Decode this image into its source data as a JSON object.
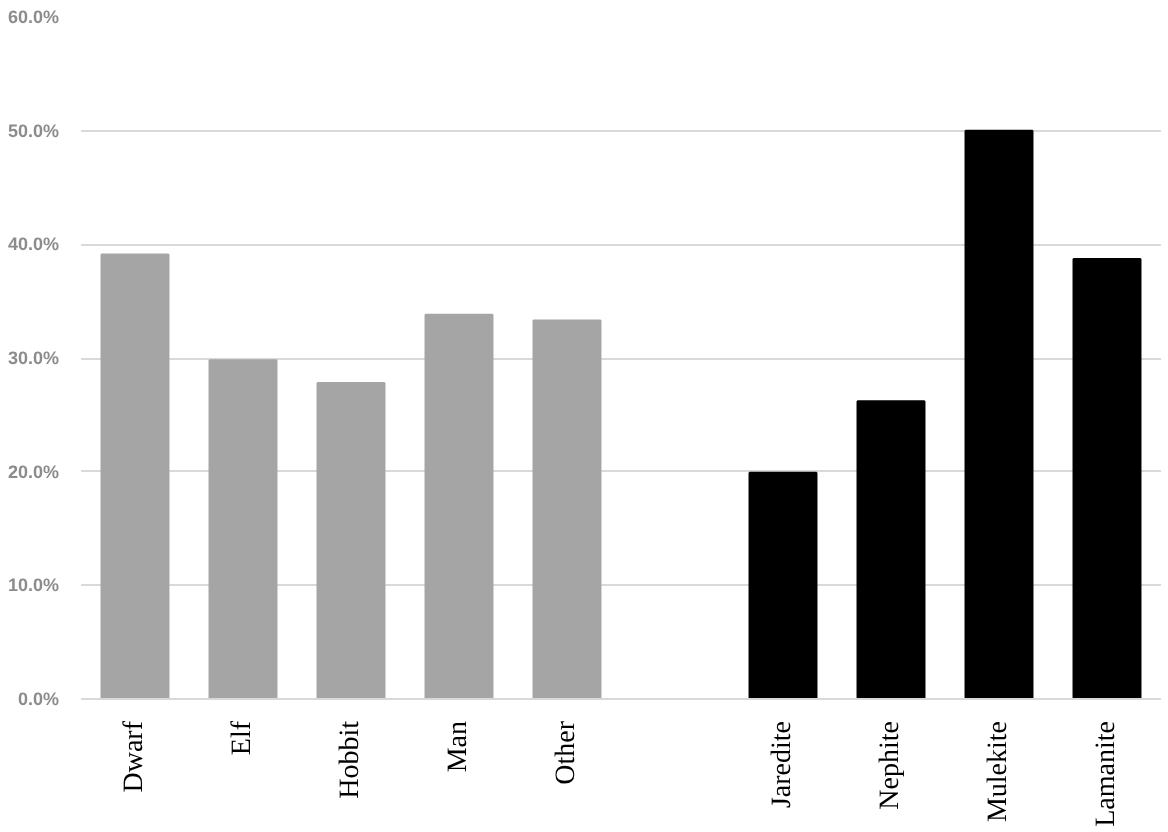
{
  "chart_data": {
    "type": "bar",
    "categories": [
      "Dwarf",
      "Elf",
      "Hobbit",
      "Man",
      "Other",
      null,
      "Jaredite",
      "Nephite",
      "Mulekite",
      "Lamanite"
    ],
    "values": [
      39.1,
      29.8,
      27.8,
      33.8,
      33.3,
      null,
      19.9,
      26.2,
      50.0,
      38.7
    ],
    "colors": [
      "#a5a5a5",
      "#a5a5a5",
      "#a5a5a5",
      "#a5a5a5",
      "#a5a5a5",
      null,
      "#000000",
      "#000000",
      "#000000",
      "#000000"
    ],
    "ylim": [
      0,
      60
    ],
    "yticks": [
      {
        "value": 0,
        "label": "0.0%"
      },
      {
        "value": 10,
        "label": "10.0%"
      },
      {
        "value": 20,
        "label": "20.0%"
      },
      {
        "value": 30,
        "label": "30.0%"
      },
      {
        "value": 40,
        "label": "40.0%"
      },
      {
        "value": 50,
        "label": "50.0%"
      },
      {
        "value": 60,
        "label": "60.0%"
      }
    ],
    "grid": "y"
  }
}
